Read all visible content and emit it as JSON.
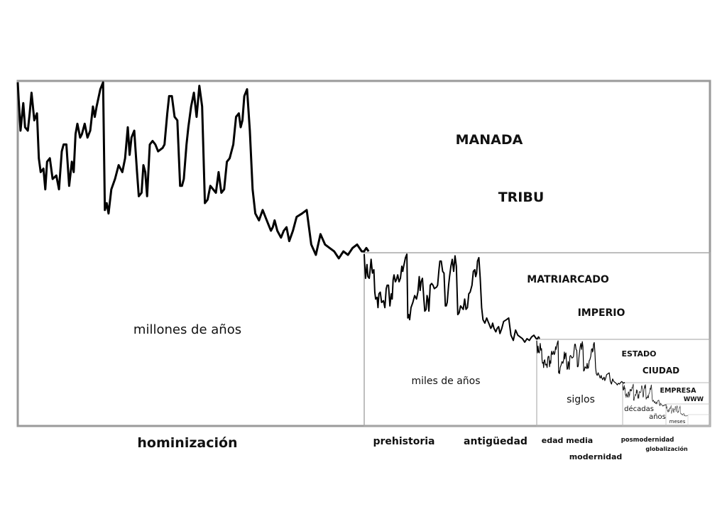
{
  "lower_labels": {
    "hominizacion": "hominización",
    "prehistoria": "prehistoria",
    "antiguedad": "antigüedad",
    "edad_media": "edad media",
    "modernidad": "modernidad",
    "posmodernidad": "posmodernidad",
    "globalizacion": "globalización"
  },
  "scale_labels": {
    "millones": "millones de años",
    "miles": "miles de años",
    "siglos": "siglos",
    "decadas": "décadas",
    "anos": "años",
    "meses": "meses"
  },
  "social_labels": {
    "manada": "MANADA",
    "tribu": "TRIBU",
    "matriarcado": "MATRIARCADO",
    "imperio": "IMPERIO",
    "estado": "ESTADO",
    "ciudad": "CIUDAD",
    "empresa": "EMPRESA",
    "www": "WWW"
  },
  "colors": {
    "frame": "#9a9a9a",
    "line": "#000000",
    "text": "#111111"
  }
}
